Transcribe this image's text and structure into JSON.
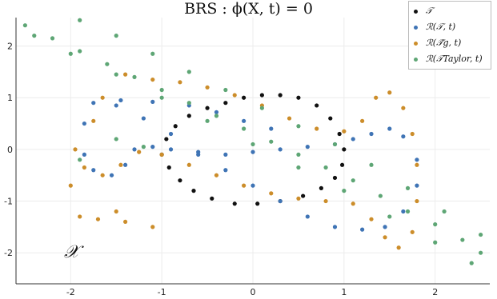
{
  "chart_data": {
    "type": "scatter",
    "title": "BRS :  ϕ(X, t) = 0",
    "region_label": "𝒳",
    "xlim": [
      -2.6,
      2.6
    ],
    "ylim": [
      -2.6,
      2.55
    ],
    "xticks": [
      -2,
      -1,
      0,
      1,
      2
    ],
    "xtick_labels": [
      "-2",
      "-1",
      "0",
      "1",
      "2"
    ],
    "yticks": [
      -2,
      -1,
      0,
      1,
      2
    ],
    "ytick_labels": [
      "-2",
      "-1",
      "0",
      "1",
      "2"
    ],
    "grid": true,
    "legend_position": "top-right",
    "series": [
      {
        "name": "𝒯",
        "color": "#111111",
        "points": [
          [
            -1.0,
            -0.1
          ],
          [
            -0.95,
            0.2
          ],
          [
            -0.85,
            0.45
          ],
          [
            -0.7,
            0.65
          ],
          [
            -0.5,
            0.8
          ],
          [
            -0.3,
            0.9
          ],
          [
            -0.1,
            1.0
          ],
          [
            0.1,
            1.05
          ],
          [
            0.3,
            1.05
          ],
          [
            0.5,
            1.0
          ],
          [
            0.7,
            0.85
          ],
          [
            0.85,
            0.6
          ],
          [
            0.95,
            0.3
          ],
          [
            1.0,
            0.0
          ],
          [
            0.98,
            -0.3
          ],
          [
            0.9,
            -0.55
          ],
          [
            0.75,
            -0.75
          ],
          [
            0.55,
            -0.9
          ],
          [
            0.3,
            -1.0
          ],
          [
            0.05,
            -1.05
          ],
          [
            -0.2,
            -1.05
          ],
          [
            -0.45,
            -0.95
          ],
          [
            -0.65,
            -0.8
          ],
          [
            -0.8,
            -0.6
          ],
          [
            -0.92,
            -0.35
          ]
        ]
      },
      {
        "name": "ℛ(𝒯, t)",
        "color": "#3f74b5",
        "points": [
          [
            -1.85,
            -0.1
          ],
          [
            -1.75,
            -0.4
          ],
          [
            -1.55,
            -0.5
          ],
          [
            -1.4,
            -0.3
          ],
          [
            -1.3,
            0.0
          ],
          [
            -1.1,
            0.05
          ],
          [
            -0.9,
            0.0
          ],
          [
            -0.6,
            -0.05
          ],
          [
            -0.3,
            -0.1
          ],
          [
            0.0,
            -0.05
          ],
          [
            0.3,
            0.0
          ],
          [
            0.6,
            0.05
          ],
          [
            0.9,
            0.1
          ],
          [
            1.1,
            0.2
          ],
          [
            1.3,
            0.3
          ],
          [
            1.5,
            0.4
          ],
          [
            1.65,
            0.25
          ],
          [
            1.8,
            -0.2
          ],
          [
            1.8,
            -0.7
          ],
          [
            1.65,
            -1.2
          ],
          [
            1.45,
            -1.5
          ],
          [
            1.2,
            -1.55
          ],
          [
            0.9,
            -1.5
          ],
          [
            0.6,
            -1.3
          ],
          [
            0.3,
            -1.0
          ],
          [
            0.0,
            -0.7
          ],
          [
            -0.3,
            -0.4
          ],
          [
            -0.6,
            -0.1
          ],
          [
            -0.9,
            0.3
          ],
          [
            -1.2,
            0.6
          ],
          [
            -1.5,
            0.85
          ],
          [
            -1.75,
            0.9
          ],
          [
            -1.85,
            0.5
          ],
          [
            -1.45,
            0.95
          ],
          [
            -1.1,
            0.92
          ],
          [
            -0.7,
            0.85
          ],
          [
            -0.4,
            0.72
          ],
          [
            -0.1,
            0.55
          ],
          [
            0.2,
            0.4
          ]
        ]
      },
      {
        "name": "ℛ(𝒯̃g, t)",
        "color": "#cc8d2a",
        "points": [
          [
            -1.95,
            0.0
          ],
          [
            -1.85,
            -0.35
          ],
          [
            -1.65,
            -0.5
          ],
          [
            -1.45,
            -0.3
          ],
          [
            -1.25,
            -0.05
          ],
          [
            -1.0,
            -0.1
          ],
          [
            -0.7,
            -0.3
          ],
          [
            -0.4,
            -0.5
          ],
          [
            -0.1,
            -0.7
          ],
          [
            0.2,
            -0.85
          ],
          [
            0.5,
            -0.95
          ],
          [
            0.8,
            -1.0
          ],
          [
            1.1,
            -1.05
          ],
          [
            1.3,
            -1.35
          ],
          [
            1.45,
            -1.7
          ],
          [
            1.6,
            -1.9
          ],
          [
            1.75,
            -1.6
          ],
          [
            1.8,
            -1.0
          ],
          [
            1.8,
            -0.3
          ],
          [
            1.75,
            0.3
          ],
          [
            1.65,
            0.8
          ],
          [
            1.5,
            1.1
          ],
          [
            1.35,
            1.0
          ],
          [
            1.2,
            0.55
          ],
          [
            1.0,
            0.35
          ],
          [
            0.7,
            0.4
          ],
          [
            0.4,
            0.6
          ],
          [
            0.1,
            0.85
          ],
          [
            -0.2,
            1.05
          ],
          [
            -0.5,
            1.2
          ],
          [
            -0.8,
            1.3
          ],
          [
            -1.1,
            1.35
          ],
          [
            -1.4,
            1.45
          ],
          [
            -1.65,
            1.0
          ],
          [
            -1.75,
            0.55
          ],
          [
            -2.0,
            -0.7
          ],
          [
            -1.9,
            -1.3
          ],
          [
            -1.7,
            -1.35
          ],
          [
            -1.4,
            -1.4
          ],
          [
            -1.1,
            -1.5
          ],
          [
            -1.5,
            -1.2
          ]
        ]
      },
      {
        "name": "ℛ(𝒯Taylor, t)",
        "color": "#5ea675",
        "points": [
          [
            -2.5,
            2.4
          ],
          [
            -2.2,
            2.15
          ],
          [
            -1.9,
            1.9
          ],
          [
            -1.6,
            1.65
          ],
          [
            -1.3,
            1.4
          ],
          [
            -1.0,
            1.15
          ],
          [
            -0.7,
            0.9
          ],
          [
            -0.4,
            0.65
          ],
          [
            -0.1,
            0.4
          ],
          [
            0.2,
            0.15
          ],
          [
            0.5,
            -0.1
          ],
          [
            0.8,
            -0.35
          ],
          [
            1.1,
            -0.6
          ],
          [
            1.4,
            -0.9
          ],
          [
            1.7,
            -1.2
          ],
          [
            2.0,
            -1.45
          ],
          [
            2.3,
            -1.75
          ],
          [
            2.5,
            -2.0
          ],
          [
            -2.4,
            2.2
          ],
          [
            -2.0,
            1.85
          ],
          [
            -1.5,
            1.45
          ],
          [
            -1.0,
            1.0
          ],
          [
            -0.5,
            0.55
          ],
          [
            0.0,
            0.1
          ],
          [
            0.5,
            -0.35
          ],
          [
            1.0,
            -0.8
          ],
          [
            1.5,
            -1.3
          ],
          [
            2.0,
            -1.8
          ],
          [
            2.4,
            -2.2
          ],
          [
            -1.9,
            2.5
          ],
          [
            -1.5,
            2.2
          ],
          [
            -1.1,
            1.85
          ],
          [
            -0.7,
            1.5
          ],
          [
            -0.3,
            1.15
          ],
          [
            0.1,
            0.8
          ],
          [
            0.5,
            0.45
          ],
          [
            0.9,
            0.1
          ],
          [
            1.3,
            -0.3
          ],
          [
            1.7,
            -0.75
          ],
          [
            2.1,
            -1.2
          ],
          [
            2.5,
            -1.65
          ],
          [
            -1.9,
            -0.2
          ],
          [
            -1.5,
            0.2
          ],
          [
            -1.2,
            0.05
          ]
        ]
      }
    ]
  }
}
